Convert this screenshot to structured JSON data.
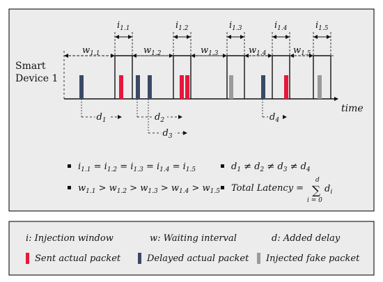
{
  "device_label": [
    "Smart",
    "Device 1"
  ],
  "axis_label": "time",
  "windows": [
    {
      "label": "i",
      "sub": "1.1"
    },
    {
      "label": "i",
      "sub": "1.2"
    },
    {
      "label": "i",
      "sub": "1.3"
    },
    {
      "label": "i",
      "sub": "1.4"
    },
    {
      "label": "i",
      "sub": "1.5"
    }
  ],
  "intervals": [
    {
      "label": "w",
      "sub": "1.1"
    },
    {
      "label": "w",
      "sub": "1.2"
    },
    {
      "label": "w",
      "sub": "1.3"
    },
    {
      "label": "w",
      "sub": "1.4"
    },
    {
      "label": "w",
      "sub": "1.5"
    }
  ],
  "delays": [
    {
      "label": "d",
      "sub": "1"
    },
    {
      "label": "d",
      "sub": "2"
    },
    {
      "label": "d",
      "sub": "3"
    },
    {
      "label": "d",
      "sub": "4"
    }
  ],
  "packets": [
    {
      "type": "delayed"
    },
    {
      "type": "sent"
    },
    {
      "type": "delayed"
    },
    {
      "type": "delayed"
    },
    {
      "type": "sent"
    },
    {
      "type": "sent"
    },
    {
      "type": "fake"
    },
    {
      "type": "delayed"
    },
    {
      "type": "sent"
    },
    {
      "type": "fake"
    }
  ],
  "equations": {
    "eq1": "i1.1 = i1.2 = i1.3 = i1.4 = i1.5",
    "eq2": "w1.1 > w1.2 > w1.3 > w1.4 > w1.5",
    "eq3": "d1 ≠ d2 ≠ d3 ≠ d4",
    "eq4_prefix": "Total Latency = ",
    "eq4_sum": "∑",
    "eq4_upper": "d",
    "eq4_lower": "i = 0",
    "eq4_term": "d",
    "eq4_term_sub": "i"
  },
  "legend": {
    "injection": "i:  Injection window",
    "waiting": "w: Waiting interval",
    "added": "d: Added delay",
    "sent": "Sent actual packet",
    "delayed": "Delayed actual packet",
    "fake": "Injected fake packet"
  },
  "colors": {
    "sent": "#e8173a",
    "delayed": "#3a4a66",
    "fake": "#9a9a9a",
    "panel_bg": "#ececec",
    "border": "#222222"
  }
}
